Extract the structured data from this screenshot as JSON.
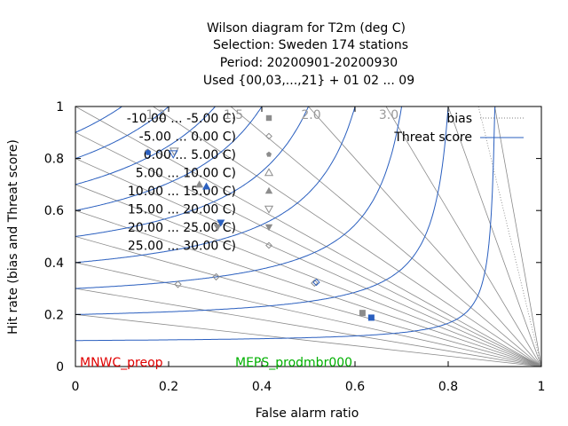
{
  "title_lines": [
    "Wilson diagram  for T2m (deg C)",
    "Selection: Sweden    174 stations",
    "Period: 20200901-20200930",
    "Used {00,03,...,21} + 01 02 ... 09"
  ],
  "colors": {
    "threat": "#2a5fbf",
    "bias": "#7f7f7f",
    "grid": "#8a8a8a",
    "model_red": "#e00000",
    "model_green": "#00b000",
    "marker_gray": "#8c8c8c",
    "marker_blue": "#2a5fbf"
  },
  "chart_data": {
    "type": "scatter",
    "title": "Wilson diagram  for T2m (deg C)",
    "xlabel": "False alarm ratio",
    "ylabel": "Hit rate (bias and Threat score)",
    "xlim": [
      0,
      1
    ],
    "ylim": [
      0,
      1
    ],
    "x_ticks": [
      "0",
      "0.2",
      "0.4",
      "0.6",
      "0.8",
      "1"
    ],
    "y_ticks": [
      "0",
      "0.2",
      "0.4",
      "0.6",
      "0.8",
      "1"
    ],
    "bias_labels": [
      "1.2",
      "1.5",
      "2.0",
      "3.0"
    ],
    "bias_values": [
      0.2,
      0.3,
      0.4,
      0.5,
      0.6,
      0.7,
      0.8,
      0.9,
      1.0,
      1.2,
      1.5,
      2.0,
      3.0,
      5.0,
      10.0
    ],
    "threat_values": [
      0.1,
      0.2,
      0.3,
      0.4,
      0.5,
      0.6,
      0.7,
      0.8,
      0.9
    ],
    "legend": {
      "entries": [
        {
          "label": "bias",
          "style": "dotted"
        },
        {
          "label": "Threat score",
          "style": "solid"
        }
      ],
      "placement": "top-right"
    },
    "classes": [
      {
        "label": "-10.00 ... -5.00 C)",
        "symbol": "square"
      },
      {
        "label": "-5.00 ... 0.00 C)",
        "symbol": "diamond-open"
      },
      {
        "label": "0.00 ... 5.00 C)",
        "symbol": "pentagon"
      },
      {
        "label": "5.00 ... 10.00 C)",
        "symbol": "triangle-open"
      },
      {
        "label": "10.00 ... 15.00 C)",
        "symbol": "triangle"
      },
      {
        "label": "15.00 ... 20.00 C)",
        "symbol": "triangle-down-open"
      },
      {
        "label": "20.00 ... 25.00 C)",
        "symbol": "triangle-down"
      },
      {
        "label": "25.00 ... 30.00 C)",
        "symbol": "diamond-open"
      }
    ],
    "series": [
      {
        "name": "MNWC_preop",
        "points": [
          {
            "x": 0.616,
            "y": 0.206,
            "symbol": "square"
          },
          {
            "x": 0.513,
            "y": 0.321,
            "symbol": "diamond-open"
          },
          {
            "x": 0.302,
            "y": 0.345,
            "symbol": "diamond-open"
          },
          {
            "x": 0.22,
            "y": 0.316,
            "symbol": "diamond-open"
          },
          {
            "x": 0.155,
            "y": 0.826,
            "symbol": "pentagon"
          },
          {
            "x": 0.212,
            "y": 0.828,
            "symbol": "triangle-down-open"
          },
          {
            "x": 0.266,
            "y": 0.7,
            "symbol": "triangle"
          },
          {
            "x": 0.305,
            "y": 0.536,
            "symbol": "triangle-down"
          }
        ]
      },
      {
        "name": "MEPS_prodmbr000",
        "points": [
          {
            "x": 0.635,
            "y": 0.188,
            "symbol": "square"
          },
          {
            "x": 0.517,
            "y": 0.324,
            "symbol": "diamond-open"
          },
          {
            "x": 0.156,
            "y": 0.823,
            "symbol": "pentagon"
          },
          {
            "x": 0.21,
            "y": 0.818,
            "symbol": "triangle-down-open"
          },
          {
            "x": 0.281,
            "y": 0.693,
            "symbol": "triangle"
          },
          {
            "x": 0.312,
            "y": 0.553,
            "symbol": "triangle-down"
          }
        ]
      }
    ],
    "grid": true
  }
}
